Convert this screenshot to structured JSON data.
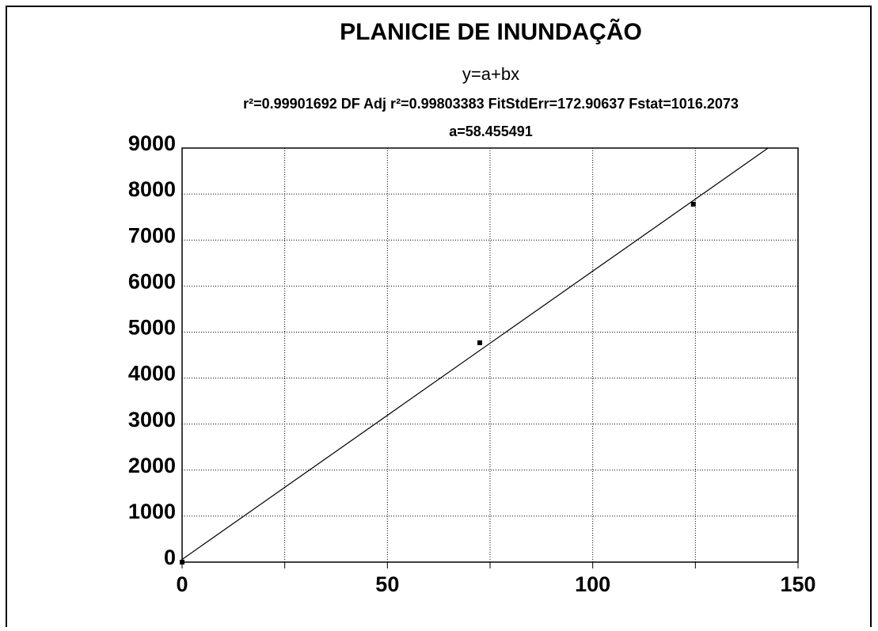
{
  "chart_data": {
    "type": "scatter",
    "title": "PLANICIE DE INUNDAÇÃO",
    "subtitle": "y=a+bx",
    "annotations": [
      "r²=0.99901692  DF Adj r²=0.99803383  FitStdErr=172.90637  Fstat=1016.2073",
      "a=58.455491"
    ],
    "series": [
      {
        "x": [
          0,
          72.5,
          124.5
        ],
        "values": [
          0,
          4768,
          7780
        ],
        "color": "#000000",
        "mode": "markers"
      },
      {
        "x": [
          0,
          142.7
        ],
        "values": [
          58.455491,
          9000
        ],
        "color": "#000000",
        "mode": "line"
      }
    ],
    "xlim": [
      0,
      150
    ],
    "xticks": [
      0,
      50,
      100,
      150
    ],
    "xminor_ticks": [
      25,
      75,
      125
    ],
    "ylim": [
      0,
      9000
    ],
    "yticks": [
      0,
      1000,
      2000,
      3000,
      4000,
      5000,
      6000,
      7000,
      8000,
      9000
    ],
    "grid": true
  }
}
